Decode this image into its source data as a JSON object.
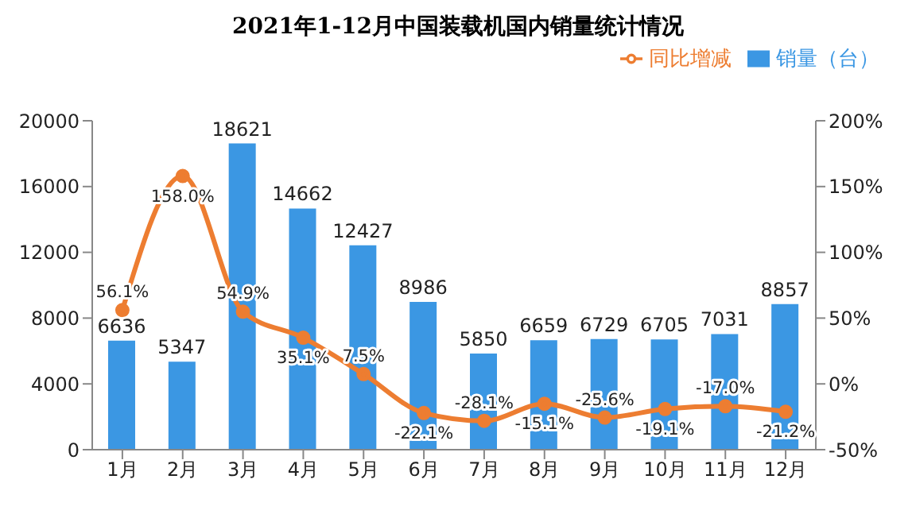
{
  "chart_data": {
    "type": "bar",
    "title": "2021年1-12月中国装载机国内销量统计情况",
    "categories": [
      "1月",
      "2月",
      "3月",
      "4月",
      "5月",
      "6月",
      "7月",
      "8月",
      "9月",
      "10月",
      "11月",
      "12月"
    ],
    "series": [
      {
        "name": "销量（台）",
        "color": "#3b97e3",
        "values": [
          6636,
          5347,
          18621,
          14662,
          12427,
          8986,
          5850,
          6659,
          6729,
          6705,
          7031,
          8857
        ],
        "value_labels": [
          "6636",
          "5347",
          "18621",
          "14662",
          "12427",
          "8986",
          "5850",
          "6659",
          "6729",
          "6705",
          "7031",
          "8857"
        ]
      },
      {
        "name": "同比增减",
        "type": "line",
        "axis": "y2",
        "color": "#ed7d31",
        "values": [
          56.1,
          158.0,
          54.9,
          35.1,
          7.5,
          -22.1,
          -28.1,
          -15.1,
          -25.6,
          -19.1,
          -17.0,
          -21.2
        ],
        "value_labels": [
          "56.1%",
          "158.0%",
          "54.9%",
          "35.1%",
          "7.5%",
          "-22.1%",
          "-28.1%",
          "-15.1%",
          "-25.6%",
          "-19.1%",
          "-17.0%",
          "-21.2%"
        ]
      }
    ],
    "ylim": [
      0,
      20000
    ],
    "yticks": [
      0,
      4000,
      8000,
      12000,
      16000,
      20000
    ],
    "y2lim": [
      -50,
      200
    ],
    "y2ticks": [
      {
        "value": -50,
        "label": "-50%"
      },
      {
        "value": 0,
        "label": "0%"
      },
      {
        "value": 50,
        "label": "50%"
      },
      {
        "value": 100,
        "label": "100%"
      },
      {
        "value": 150,
        "label": "150%"
      },
      {
        "value": 200,
        "label": "200%"
      }
    ],
    "legend": "top right",
    "marker": "circle",
    "line_style": "solid"
  }
}
